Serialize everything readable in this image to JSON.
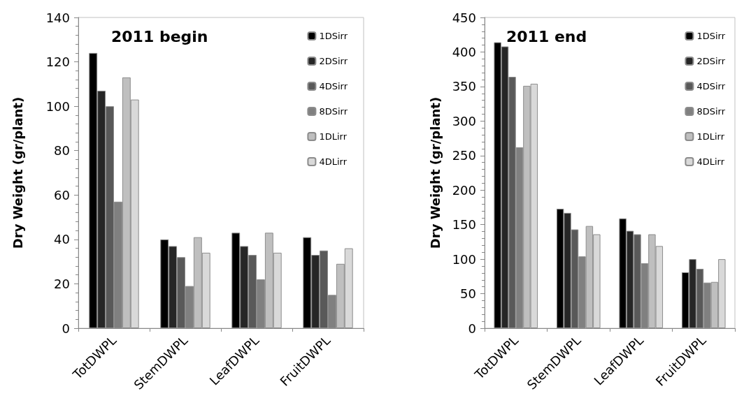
{
  "chart_data": [
    {
      "type": "bar",
      "title": "2011 begin",
      "ylabel": "Dry Weight (gr/plant)",
      "categories": [
        "TotDWPL",
        "StemDWPL",
        "LeafDWPL",
        "FruitDWPL"
      ],
      "ylim": [
        0,
        140
      ],
      "yticks": [
        0,
        20,
        40,
        60,
        80,
        100,
        120,
        140
      ],
      "legend": "top right",
      "grid": false,
      "series": [
        {
          "name": "1DSirr",
          "color": "#000000",
          "values": [
            124,
            40,
            43,
            41
          ]
        },
        {
          "name": "2DSirr",
          "color": "#262626",
          "values": [
            107,
            37,
            37,
            33
          ]
        },
        {
          "name": "4DSirr",
          "color": "#595959",
          "values": [
            100,
            32,
            33,
            35
          ]
        },
        {
          "name": "8DSirr",
          "color": "#808080",
          "values": [
            57,
            19,
            22,
            15
          ]
        },
        {
          "name": "1DLirr",
          "color": "#bfbfbf",
          "values": [
            113,
            41,
            43,
            29
          ]
        },
        {
          "name": "4DLirr",
          "color": "#d9d9d9",
          "values": [
            103,
            34,
            34,
            36
          ]
        }
      ]
    },
    {
      "type": "bar",
      "title": "2011 end",
      "ylabel": "Dry Weight (gr/plant)",
      "categories": [
        "TotDWPL",
        "StemDWPL",
        "LeafDWPL",
        "FruitDWPL"
      ],
      "ylim": [
        0,
        450
      ],
      "yticks": [
        0,
        50,
        100,
        150,
        200,
        250,
        300,
        350,
        400,
        450
      ],
      "legend": "top right",
      "grid": false,
      "series": [
        {
          "name": "1DSirr",
          "color": "#000000",
          "values": [
            414,
            173,
            159,
            81
          ]
        },
        {
          "name": "2DSirr",
          "color": "#262626",
          "values": [
            408,
            167,
            141,
            100
          ]
        },
        {
          "name": "4DSirr",
          "color": "#595959",
          "values": [
            364,
            143,
            136,
            86
          ]
        },
        {
          "name": "8DSirr",
          "color": "#808080",
          "values": [
            262,
            104,
            94,
            66
          ]
        },
        {
          "name": "1DLirr",
          "color": "#bfbfbf",
          "values": [
            351,
            148,
            136,
            67
          ]
        },
        {
          "name": "4DLirr",
          "color": "#d9d9d9",
          "values": [
            354,
            136,
            119,
            100
          ]
        }
      ]
    }
  ]
}
